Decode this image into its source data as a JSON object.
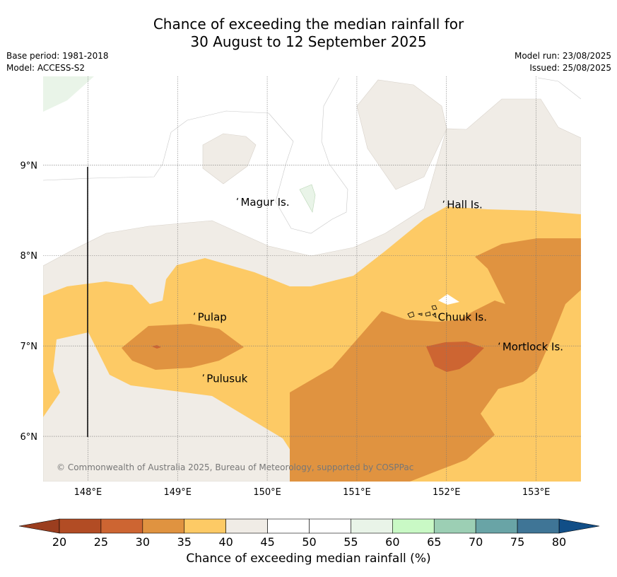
{
  "title": {
    "line1": "Chance of exceeding the median rainfall for",
    "line2": "30 August to 12 September 2025"
  },
  "meta": {
    "base_period": "Base period: 1981-2018",
    "model": "Model: ACCESS-S2",
    "model_run": "Model run: 23/08/2025",
    "issued": "Issued: 25/08/2025"
  },
  "map": {
    "lon_range": [
      147.5,
      153.5
    ],
    "lat_range": [
      5.5,
      9.98
    ],
    "lon_ticks": [
      148,
      149,
      150,
      151,
      152,
      153
    ],
    "lon_tick_labels": [
      "148°E",
      "149°E",
      "150°E",
      "151°E",
      "152°E",
      "153°E"
    ],
    "lat_ticks": [
      6,
      7,
      8,
      9
    ],
    "lat_tick_labels": [
      "6°N",
      "7°N",
      "8°N",
      "9°N"
    ],
    "grid": true,
    "places": [
      {
        "name": "Magur Is.",
        "lon": 149.68,
        "lat": 8.55
      },
      {
        "name": "Hall Is.",
        "lon": 151.98,
        "lat": 8.52
      },
      {
        "name": "Pulap",
        "lon": 149.2,
        "lat": 7.28
      },
      {
        "name": "Chuuk Is.",
        "lon": 151.88,
        "lat": 7.28
      },
      {
        "name": "Mortlock Is.",
        "lon": 152.6,
        "lat": 6.95
      },
      {
        "name": "Pulusuk",
        "lon": 149.3,
        "lat": 6.6
      }
    ],
    "copyright": "© Commonwealth of Australia 2025, Bureau of Meteorology, supported by COSPPac"
  },
  "colorbar": {
    "title": "Chance of exceeding median rainfall (%)",
    "ticks": [
      "20",
      "25",
      "30",
      "35",
      "40",
      "45",
      "50",
      "55",
      "60",
      "65",
      "70",
      "75",
      "80"
    ],
    "colors": [
      "#b24c24",
      "#cd6532",
      "#e09340",
      "#fdca65",
      "#f0ece6",
      "#ffffff",
      "#ffffff",
      "#e9f4e8",
      "#c9f9c5",
      "#9ccfb4",
      "#69a4a6",
      "#3f7596"
    ],
    "under_color": "#9b3e1f",
    "over_color": "#114e87"
  }
}
